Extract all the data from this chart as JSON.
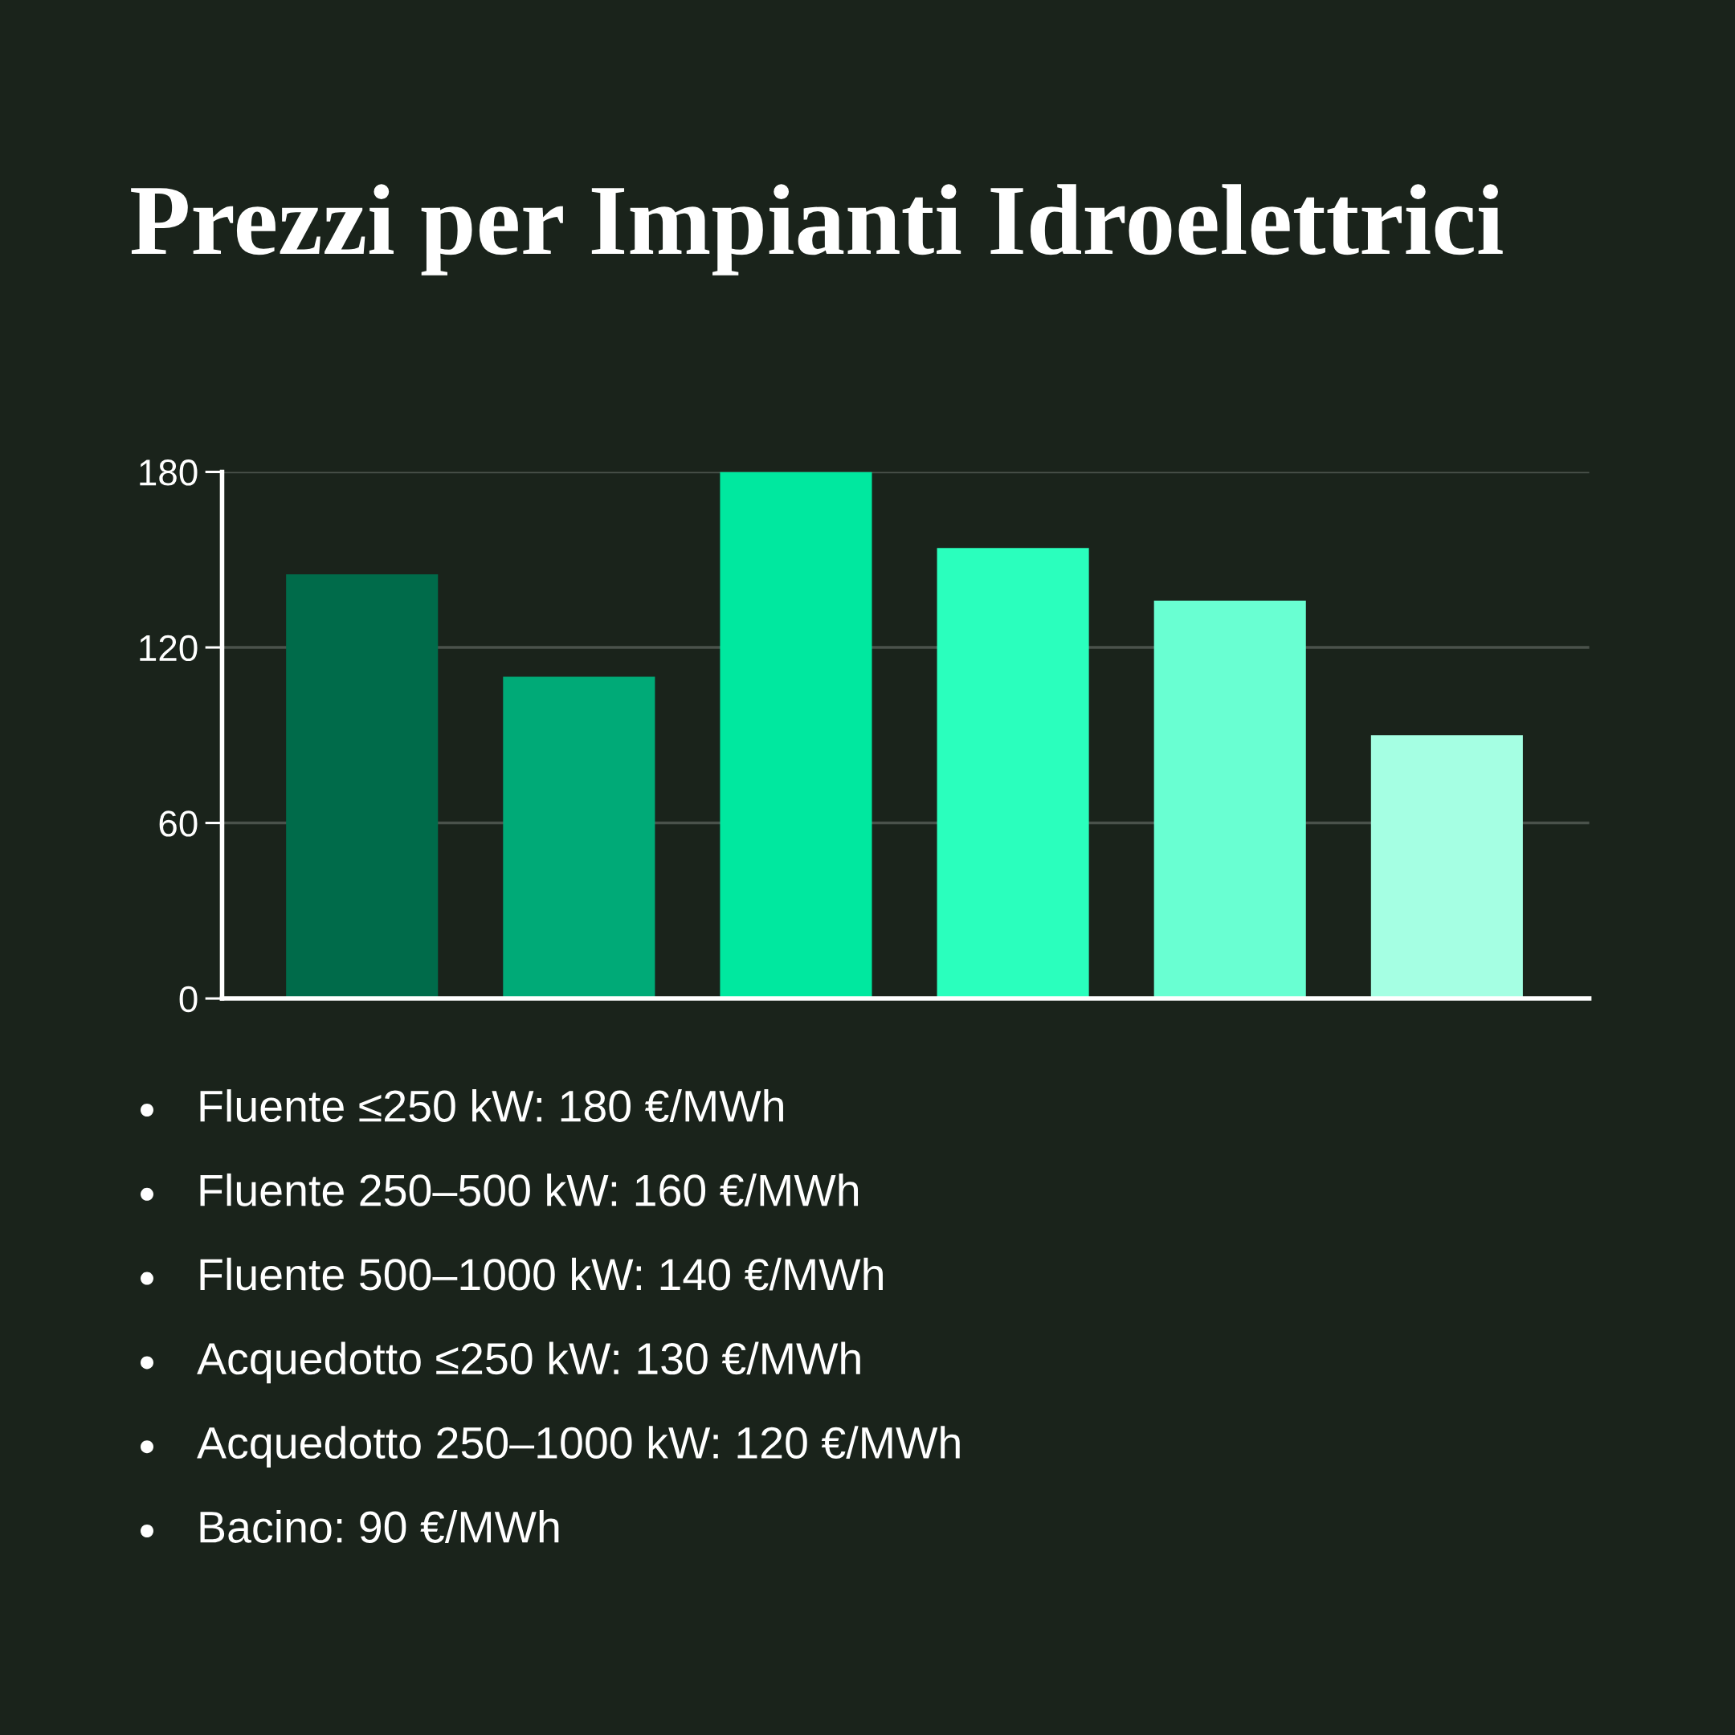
{
  "chart_data": {
    "type": "bar",
    "title": "Prezzi per Impianti Idroelettrici",
    "categories": [
      null,
      null,
      null,
      null,
      null,
      null
    ],
    "values": [
      145,
      110,
      180,
      154,
      136,
      90
    ],
    "colors": [
      "#006b4a",
      "#00aa77",
      "#00e89f",
      "#2affbd",
      "#69ffd2",
      "#a5ffe3"
    ],
    "ylim": [
      0,
      180
    ],
    "yticks": [
      0,
      60,
      120,
      180
    ],
    "grid": "y",
    "annotations": [
      "Fluente ≤250 kW: 180 €/MWh",
      "Fluente 250–500 kW: 160 €/MWh",
      "Fluente 500–1000 kW: 140 €/MWh",
      "Acquedotto ≤250 kW: 130 €/MWh",
      "Acquedotto 250–1000 kW: 120 €/MWh",
      "Bacino: 90 €/MWh"
    ]
  }
}
